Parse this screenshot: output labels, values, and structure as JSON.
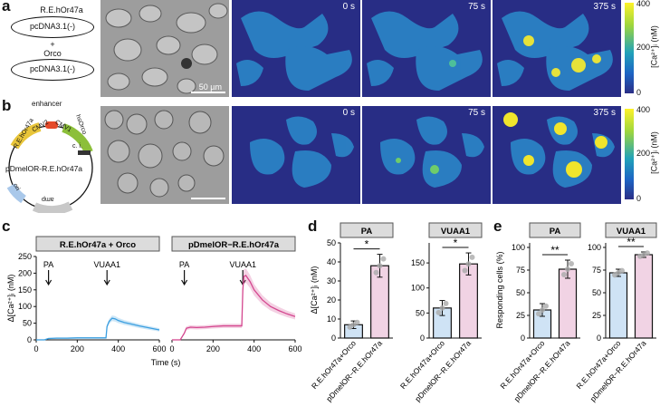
{
  "panel_labels": {
    "a": "a",
    "b": "b",
    "c": "c",
    "d": "d",
    "e": "e"
  },
  "panel_a": {
    "top_plasmid": "R.E.hOr47a",
    "top_vector": "pcDNA3.1(-)",
    "plus": "+",
    "bottom_plasmid": "Orco",
    "bottom_vector": "pcDNA3.1(-)",
    "scalebar": "50 µm"
  },
  "panel_b": {
    "enhancer": "enhancer",
    "re_gene": "R.E.hOr47a",
    "hsorco": "hsOrco",
    "cmv2": "CMV2",
    "cmv1": "CMV1",
    "ci": "c. i.",
    "plasmid_name": "pDmelOR-R.E.hOr47a",
    "ori": "ori",
    "amp": "amp"
  },
  "timestamps": [
    "0 s",
    "75 s",
    "375 s"
  ],
  "colorbar": {
    "label": "[Ca²⁺]ᵢ (nM)",
    "ticks": [
      "400",
      "200",
      "0"
    ],
    "colors": [
      "#fdf22a",
      "#9ed63d",
      "#21a2b9",
      "#1d64c4",
      "#2b2e86"
    ]
  },
  "chart_data": [
    {
      "type": "line",
      "title": "R.E.hOr47a + Orco",
      "ylabel": "Δ[Ca²⁺]ᵢ (nM)",
      "xlabel": "Time (s)",
      "xlim": [
        0,
        600
      ],
      "ylim": [
        0,
        250
      ],
      "xticks": [
        "0",
        "200",
        "400",
        "600"
      ],
      "yticks": [
        "0",
        "50",
        "100",
        "150",
        "200",
        "250"
      ],
      "annotations": [
        "PA",
        "VUAA1"
      ],
      "color": "#3c9fe0",
      "series": [
        {
          "x": [
            0,
            20,
            40,
            60,
            100,
            150,
            200,
            250,
            300,
            340,
            345,
            355,
            370,
            385,
            400,
            430,
            460,
            500,
            550,
            600
          ],
          "y": [
            0,
            0,
            0,
            4,
            5,
            5,
            6,
            6,
            6,
            6,
            40,
            55,
            65,
            63,
            58,
            52,
            48,
            42,
            36,
            30
          ]
        }
      ]
    },
    {
      "type": "line",
      "title": "pDmelOR−R.E.hOr47a",
      "xlim": [
        0,
        600
      ],
      "ylim": [
        0,
        250
      ],
      "xticks": [
        "0",
        "200",
        "400",
        "600"
      ],
      "annotations": [
        "PA",
        "VUAA1"
      ],
      "color": "#d4478f",
      "series": [
        {
          "x": [
            0,
            20,
            40,
            60,
            70,
            90,
            120,
            160,
            200,
            250,
            300,
            340,
            345,
            350,
            360,
            380,
            400,
            440,
            480,
            520,
            560,
            600
          ],
          "y": [
            0,
            0,
            0,
            20,
            35,
            38,
            37,
            38,
            40,
            42,
            42,
            42,
            150,
            190,
            193,
            175,
            150,
            120,
            100,
            88,
            78,
            70
          ]
        }
      ]
    },
    {
      "type": "bar",
      "title": "PA",
      "ylabel": "Δ[Ca²⁺]ᵢ (nM)",
      "ylim": [
        0,
        50
      ],
      "yticks": [
        "0",
        "10",
        "20",
        "30",
        "40",
        "50"
      ],
      "categories": [
        "R.E.hOr47a+Orco",
        "pDmelOR−R.E.hOr47a"
      ],
      "values": [
        7,
        38
      ],
      "errors": [
        2,
        6
      ],
      "significance": "*"
    },
    {
      "type": "bar",
      "title": "VUAA1",
      "ylim": [
        0,
        190
      ],
      "yticks": [
        "0",
        "50",
        "100",
        "150"
      ],
      "categories": [
        "R.E.hOr47a+Orco",
        "pDmelOR−R.E.hOr47a"
      ],
      "values": [
        60,
        148
      ],
      "errors": [
        15,
        22
      ],
      "significance": "*"
    },
    {
      "type": "bar",
      "title": "PA",
      "ylabel": "Responding cells (%)",
      "ylim": [
        0,
        105
      ],
      "yticks": [
        "0",
        "25",
        "50",
        "75",
        "100"
      ],
      "categories": [
        "R.E.hOr47a+Orco",
        "pDmelOR−R.E.hOr47a"
      ],
      "values": [
        31,
        76
      ],
      "errors": [
        7,
        10
      ],
      "significance": "**"
    },
    {
      "type": "bar",
      "title": "VUAA1",
      "ylim": [
        0,
        105
      ],
      "yticks": [
        "0",
        "25",
        "50",
        "75",
        "100"
      ],
      "categories": [
        "R.E.hOr47a+Orco",
        "pDmelOR−R.E.hOr47a"
      ],
      "values": [
        72,
        92
      ],
      "errors": [
        4,
        3
      ],
      "significance": "**"
    }
  ]
}
